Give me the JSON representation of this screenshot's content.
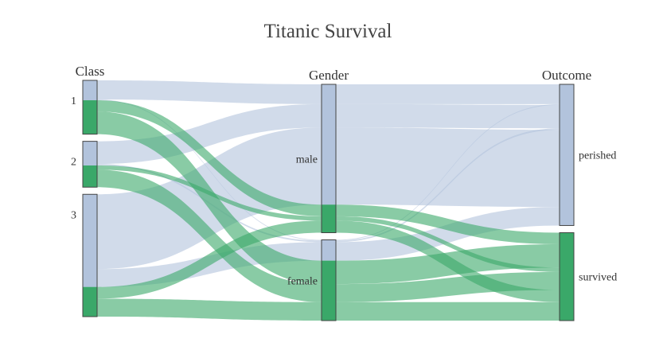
{
  "chart_data": {
    "type": "parallel_categories",
    "title": "Titanic Survival",
    "dimensions": [
      {
        "label": "Class",
        "categories": [
          "1",
          "2",
          "3"
        ]
      },
      {
        "label": "Gender",
        "categories": [
          "male",
          "female"
        ]
      },
      {
        "label": "Outcome",
        "categories": [
          "perished",
          "survived"
        ]
      }
    ],
    "color_by": "Outcome",
    "colors": {
      "perished": "#b2c3dc",
      "survived": "#3aa869"
    },
    "flows": [
      {
        "class": "1",
        "gender": "male",
        "outcome": "perished",
        "count": 77
      },
      {
        "class": "1",
        "gender": "male",
        "outcome": "survived",
        "count": 45
      },
      {
        "class": "1",
        "gender": "female",
        "outcome": "perished",
        "count": 3
      },
      {
        "class": "1",
        "gender": "female",
        "outcome": "survived",
        "count": 91
      },
      {
        "class": "2",
        "gender": "male",
        "outcome": "perished",
        "count": 91
      },
      {
        "class": "2",
        "gender": "male",
        "outcome": "survived",
        "count": 17
      },
      {
        "class": "2",
        "gender": "female",
        "outcome": "perished",
        "count": 6
      },
      {
        "class": "2",
        "gender": "female",
        "outcome": "survived",
        "count": 70
      },
      {
        "class": "3",
        "gender": "male",
        "outcome": "perished",
        "count": 300
      },
      {
        "class": "3",
        "gender": "male",
        "outcome": "survived",
        "count": 47
      },
      {
        "class": "3",
        "gender": "female",
        "outcome": "perished",
        "count": 72
      },
      {
        "class": "3",
        "gender": "female",
        "outcome": "survived",
        "count": 72
      }
    ]
  }
}
